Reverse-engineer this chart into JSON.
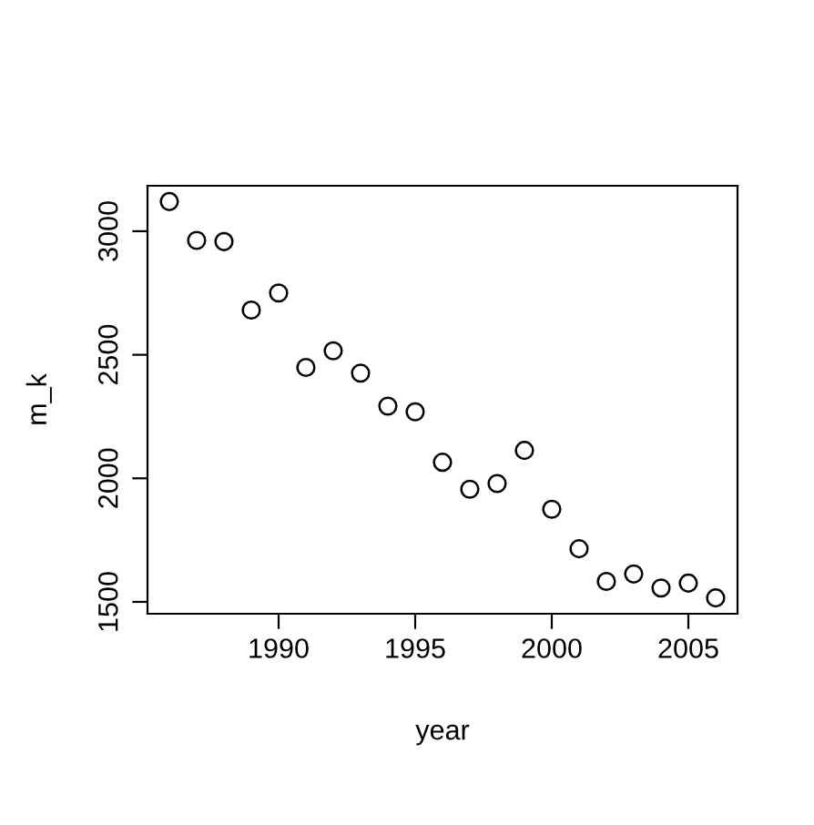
{
  "chart_data": {
    "type": "scatter",
    "xlabel": "year",
    "ylabel": "m_k",
    "x": [
      1986,
      1987,
      1988,
      1989,
      1990,
      1991,
      1992,
      1993,
      1994,
      1995,
      1996,
      1997,
      1998,
      1999,
      2000,
      2001,
      2002,
      2003,
      2004,
      2005,
      2006
    ],
    "values": [
      3120,
      2963,
      2958,
      2681,
      2750,
      2449,
      2516,
      2426,
      2292,
      2269,
      2065,
      1956,
      1979,
      2113,
      1875,
      1715,
      1583,
      1613,
      1556,
      1576,
      1516
    ],
    "color": "#000000",
    "marker": "circle",
    "grid": false,
    "legend": false,
    "xlim": [
      1985.2,
      2006.8
    ],
    "xticks": [
      1990,
      1995,
      2000,
      2005
    ],
    "ylim": [
      1452,
      3184
    ],
    "yticks": [
      1500,
      2000,
      2500,
      3000
    ]
  }
}
